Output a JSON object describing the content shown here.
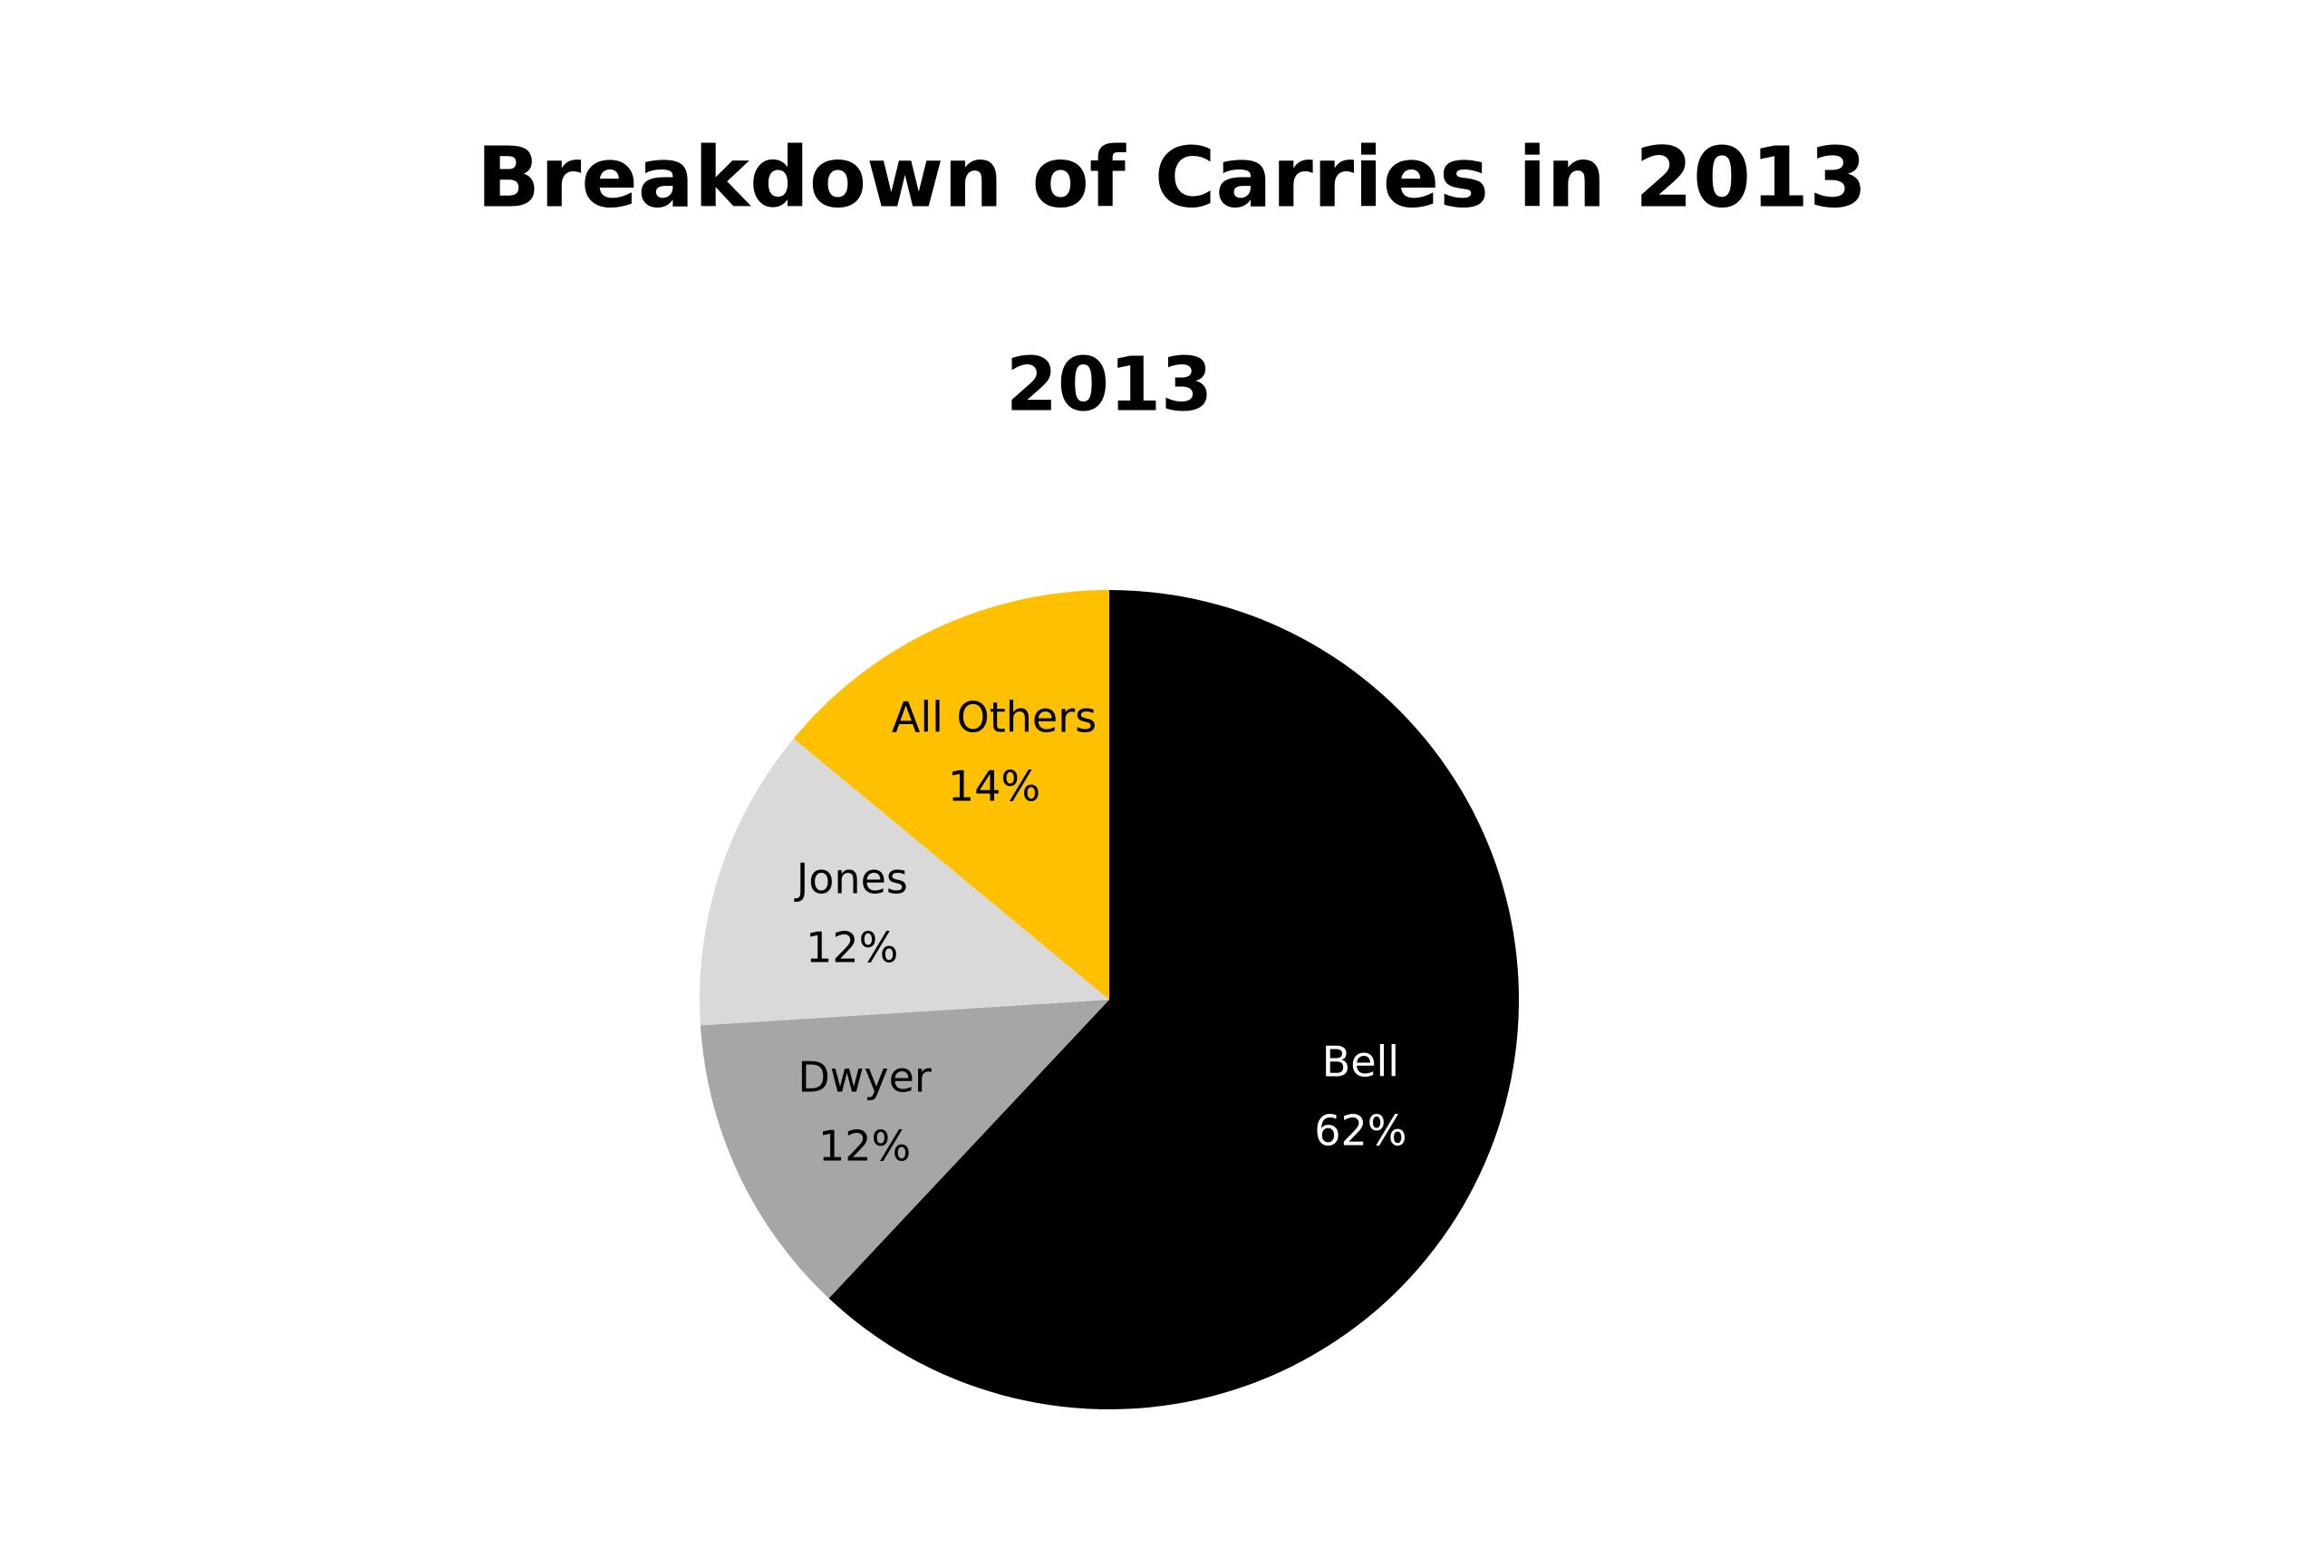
{
  "chart_data": {
    "type": "pie",
    "title": "Breakdown of Carries in 2013",
    "subtitle": "2013",
    "categories": [
      "Bell",
      "Dwyer",
      "Jones",
      "All Others"
    ],
    "values": [
      62,
      12,
      12,
      14
    ],
    "value_labels": [
      "62%",
      "12%",
      "12%",
      "14%"
    ],
    "colors": [
      "#000000",
      "#a6a6a6",
      "#d9d9d9",
      "#ffc000"
    ]
  }
}
